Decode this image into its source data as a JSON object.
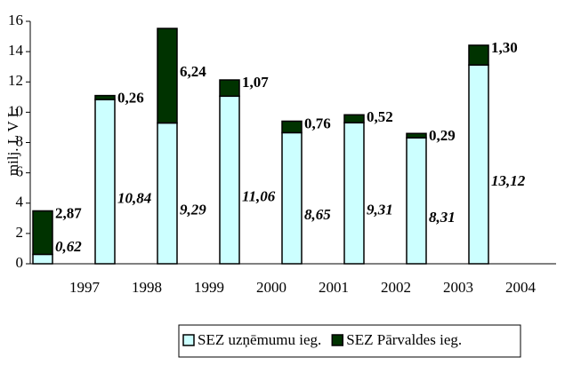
{
  "chart_data": {
    "type": "stacked_bar",
    "y_label": "milj. L V L",
    "categories": [
      "1997",
      "1998",
      "1999",
      "2000",
      "2001",
      "2002",
      "2003",
      "2004"
    ],
    "series": [
      {
        "name": "SEZ uzņēmumu ieg.",
        "color": "#ccffff",
        "values": [
          0.62,
          10.84,
          9.29,
          11.06,
          8.65,
          9.31,
          8.31,
          13.12
        ],
        "value_labels": [
          "0,62",
          "10,84",
          "9,29",
          "11,06",
          "8,65",
          "9,31",
          "8,31",
          "13,12"
        ]
      },
      {
        "name": "SEZ Pārvaldes ieg.",
        "color": "#003300",
        "values": [
          2.87,
          0.26,
          6.24,
          1.07,
          0.76,
          0.52,
          0.29,
          1.3
        ],
        "value_labels": [
          "2,87",
          "0,26",
          "6,24",
          "1,07",
          "0,76",
          "0,52",
          "0,29",
          "1,30"
        ]
      }
    ],
    "ylim": [
      0,
      16
    ],
    "yticks": [
      0,
      2,
      4,
      6,
      8,
      10,
      12,
      14,
      16
    ],
    "legend": "bottom"
  }
}
